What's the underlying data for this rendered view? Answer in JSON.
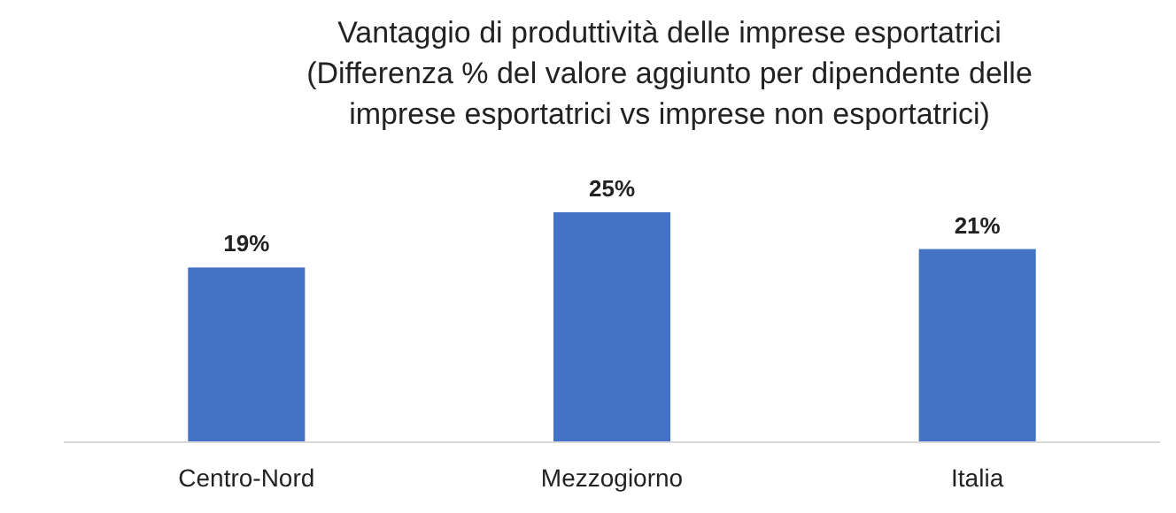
{
  "chart_data": {
    "type": "bar",
    "title": "Vantaggio di produttività delle imprese esportatrici\n(Differenza % del valore aggiunto per dipendente delle\nimprese esportatrici vs imprese non esportatrici)",
    "categories": [
      "Centro-Nord",
      "Mezzogiorno",
      "Italia"
    ],
    "values": [
      19,
      25,
      21
    ],
    "value_labels": [
      "19%",
      "25%",
      "21%"
    ],
    "color": "#4472c4"
  }
}
